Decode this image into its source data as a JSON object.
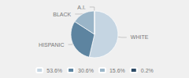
{
  "chart_data": {
    "type": "pie",
    "categories": [
      "WHITE",
      "HISPANIC",
      "BLACK",
      "A.I."
    ],
    "values": [
      53.6,
      30.6,
      15.6,
      0.2
    ],
    "value_labels": [
      "53.6%",
      "30.6%",
      "15.6%",
      "0.2%"
    ],
    "colors": [
      "#c5d5e2",
      "#5d84a0",
      "#9ab5c8",
      "#2c4a65"
    ],
    "legend": "bottom"
  }
}
